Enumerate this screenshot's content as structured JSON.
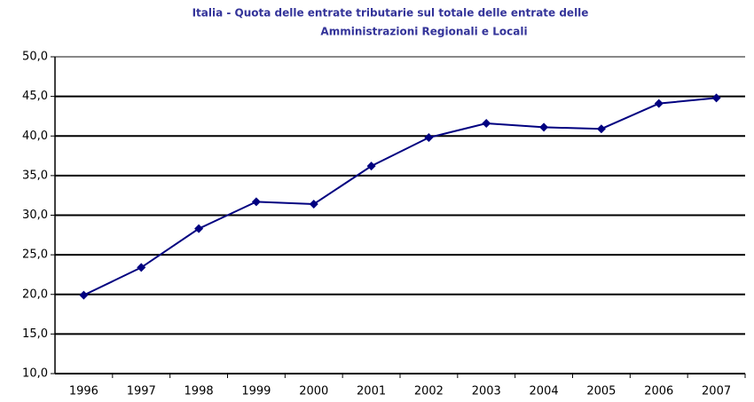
{
  "chart_data": {
    "type": "line",
    "title": [
      "Italia - Quota delle entrate tributarie sul totale delle entrate delle",
      "Amministrazioni Regionali e Locali"
    ],
    "categories": [
      "1996",
      "1997",
      "1998",
      "1999",
      "2000",
      "2001",
      "2002",
      "2003",
      "2004",
      "2005",
      "2006",
      "2007"
    ],
    "series": [
      {
        "name": null,
        "color": "#000080",
        "values": [
          19.9,
          23.4,
          28.3,
          31.7,
          31.4,
          36.2,
          39.8,
          41.6,
          41.1,
          40.9,
          44.1,
          44.8
        ]
      }
    ],
    "ylim": [
      10,
      50
    ],
    "yticks": [
      {
        "value": 10,
        "label": "10,0"
      },
      {
        "value": 15,
        "label": "15,0"
      },
      {
        "value": 20,
        "label": "20,0"
      },
      {
        "value": 25,
        "label": "25,0"
      },
      {
        "value": 30,
        "label": "30,0"
      },
      {
        "value": 35,
        "label": "35,0"
      },
      {
        "value": 40,
        "label": "40,0"
      },
      {
        "value": 45,
        "label": "45,0"
      },
      {
        "value": 50,
        "label": "50,0"
      }
    ],
    "grid": true
  }
}
